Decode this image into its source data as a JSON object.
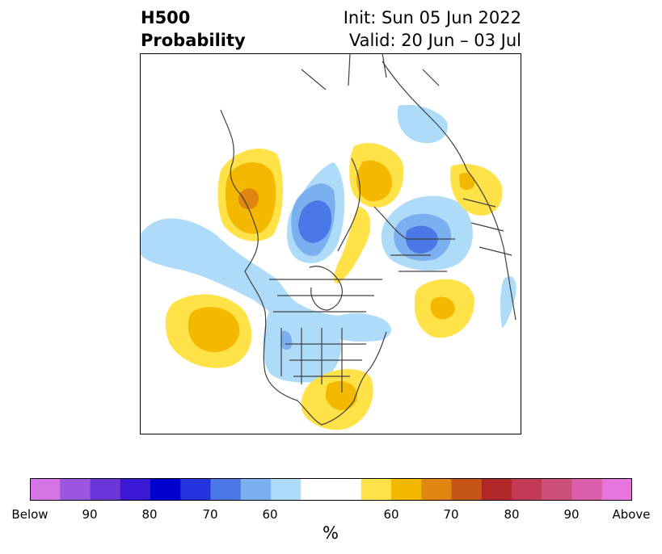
{
  "title": {
    "left_line1": "H500",
    "left_line2": "Probability",
    "right_line1": "Init: Sun 05 Jun 2022",
    "right_line2": "Valid: 20 Jun – 03 Jul"
  },
  "colorbar": {
    "unit": "%",
    "ticks": [
      "Below",
      "90",
      "80",
      "70",
      "60",
      "60",
      "70",
      "80",
      "90",
      "Above"
    ],
    "colors": [
      "#d575e5",
      "#9c55e0",
      "#6b36d8",
      "#3a18d4",
      "#0000cc",
      "#2334dc",
      "#4a78e6",
      "#7ab0ef",
      "#aedbf8",
      "#ffffff",
      "#ffffff",
      "#ffe148",
      "#f4b800",
      "#e08510",
      "#c65518",
      "#b22828",
      "#c23a55",
      "#cc4f7c",
      "#da60ac",
      "#e676de"
    ]
  },
  "map": {
    "anomaly_colors": {
      "below_50": "#aedbf8",
      "below_60": "#7ab0ef",
      "below_70": "#4a78e6",
      "above_50": "#ffe148",
      "above_60": "#f4b800",
      "above_70": "#e08510"
    }
  }
}
